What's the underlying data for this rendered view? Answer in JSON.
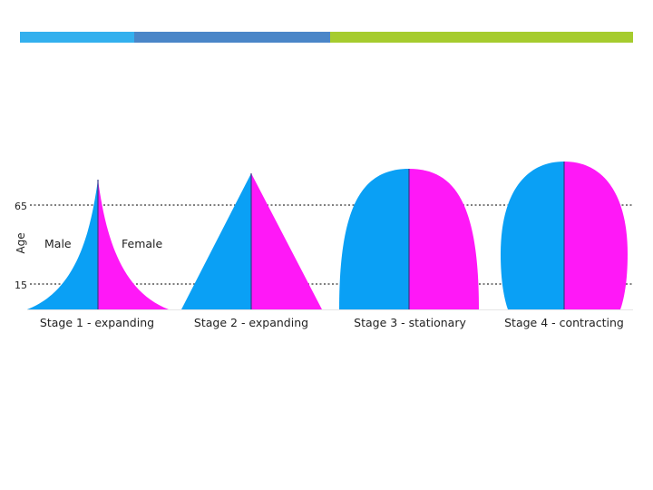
{
  "colors": {
    "bar_segment_1": "#33b0ee",
    "bar_segment_2": "#4a86c8",
    "bar_segment_3": "#a6cc2e",
    "male": "#0aa0f5",
    "female": "#ff18f7",
    "divider": "#3a3a8a",
    "dotted_line": "#333333"
  },
  "axis": {
    "label": "Age",
    "tick_upper": "65",
    "tick_lower": "15"
  },
  "legend": {
    "male": "Male",
    "female": "Female"
  },
  "stages": [
    {
      "label": "Stage 1 - expanding"
    },
    {
      "label": "Stage 2 - expanding"
    },
    {
      "label": "Stage 3 - stationary"
    },
    {
      "label": "Stage 4 - contracting"
    }
  ]
}
